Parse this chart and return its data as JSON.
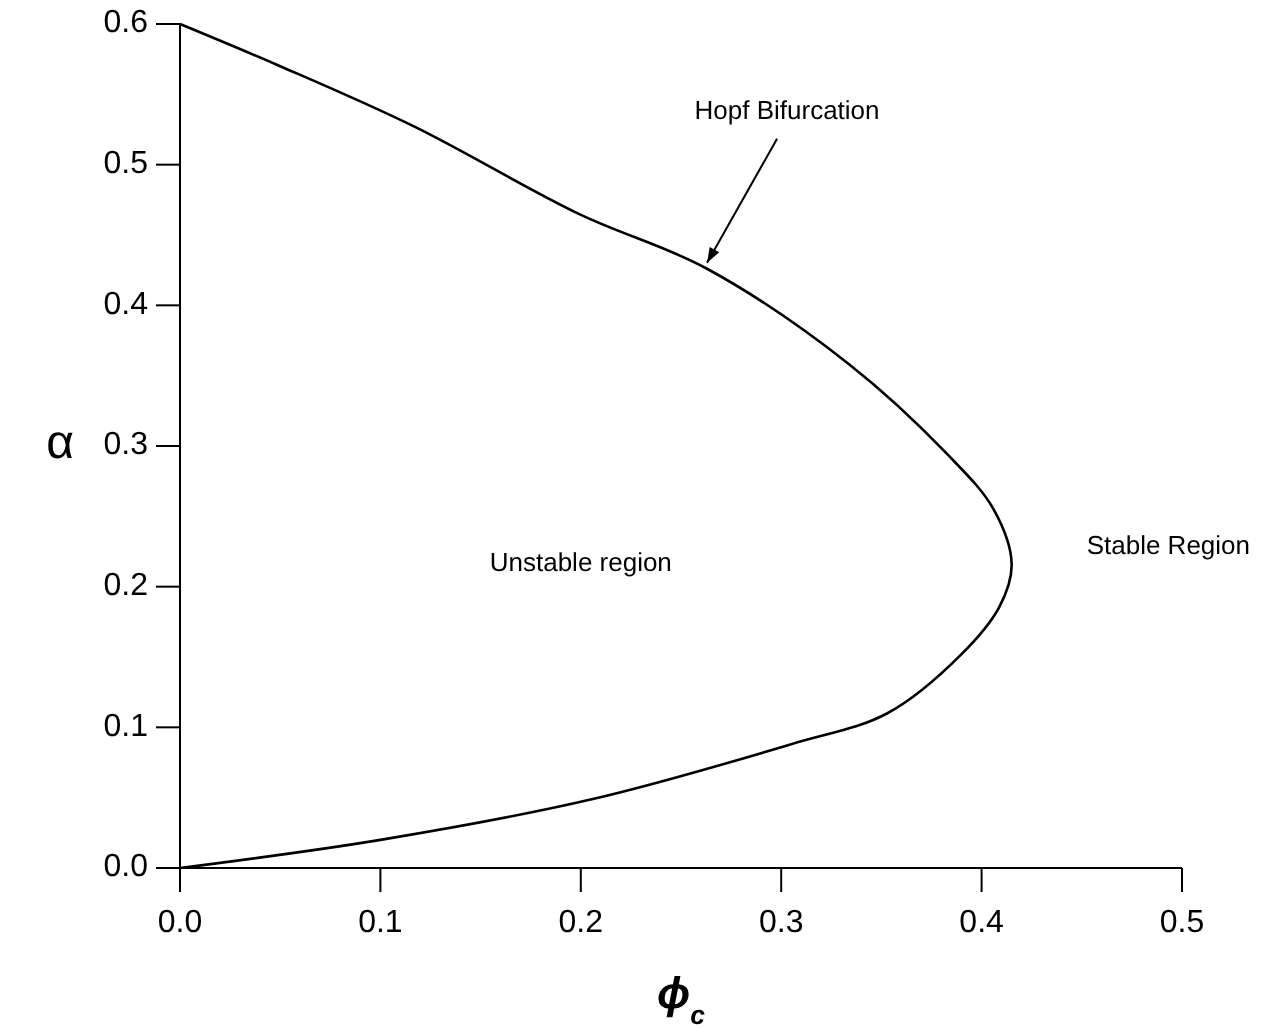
{
  "chart_data": {
    "type": "line",
    "xlabel": "ϕ$_{c}$",
    "ylabel": "α",
    "xlim": [
      0,
      0.5
    ],
    "ylim": [
      0,
      0.6
    ],
    "xticks": [
      "0.0",
      0.1,
      0.2,
      0.3,
      0.4,
      0.5
    ],
    "yticks": [
      {
        "value": 0,
        "label": "0.0"
      },
      {
        "value": 0.1,
        "label": "0.1"
      },
      {
        "value": 0.2,
        "label": "0.2"
      },
      {
        "value": 0.3,
        "label": "0.3"
      },
      {
        "value": 0.4,
        "label": "0.4"
      },
      {
        "value": 0.5,
        "label": "0.5"
      },
      {
        "value": 0.6,
        "label": "0.6"
      }
    ],
    "marker": "none",
    "line_style": "solid",
    "series": [
      {
        "color": "#000000",
        "x": [
          0,
          0.05,
          0.117,
          0.199,
          0.263,
          0.334,
          0.383,
          0.406,
          0.415,
          0.409,
          0.39,
          0.353,
          0.305,
          0.206,
          0.1,
          0
        ],
        "values": [
          0.6,
          0.57,
          0.527,
          0.465,
          0.426,
          0.358,
          0.294,
          0.255,
          0.216,
          0.186,
          0.152,
          0.11,
          0.088,
          0.049,
          0.02,
          0
        ]
      }
    ],
    "annotations": [
      {
        "text": "Hopf Bifurcation",
        "x": 0.263,
        "y": 0.426
      },
      "Unstable region",
      "Stable Region"
    ]
  }
}
